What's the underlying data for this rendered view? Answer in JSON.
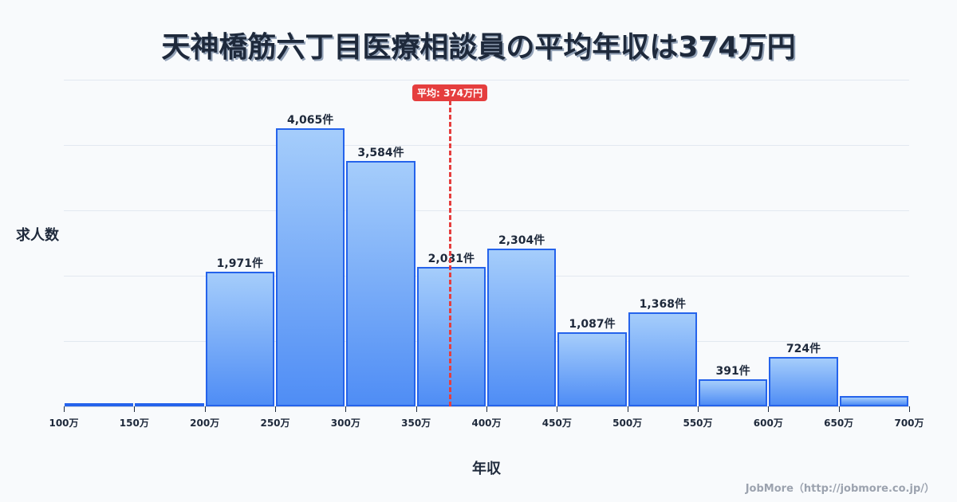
{
  "title": "天神橋筋六丁目医療相談員の平均年収は374万円",
  "y_axis_label": "求人数",
  "x_axis_label": "年収",
  "average_badge": "平均: 374万円",
  "credit": "JobMore（http://jobmore.co.jp/）",
  "colors": {
    "bar_border": "#2563eb",
    "bar_top": "#a5cdfb",
    "bar_bottom": "#4f8df5",
    "average_line": "#e53e3e",
    "text": "#1e293b",
    "grid": "#e2e8f0",
    "background": "#f8fafc"
  },
  "chart_data": {
    "type": "bar",
    "title": "天神橋筋六丁目医療相談員の平均年収は374万円",
    "xlabel": "年収",
    "ylabel": "求人数",
    "categories": [
      "100-150万",
      "150-200万",
      "200-250万",
      "250-300万",
      "300-350万",
      "350-400万",
      "400-450万",
      "450-500万",
      "500-550万",
      "550-600万",
      "600-650万",
      "650-700万"
    ],
    "values": [
      20,
      50,
      1971,
      4065,
      3584,
      2031,
      2304,
      1087,
      1368,
      391,
      724,
      150
    ],
    "labels": [
      "",
      "",
      "1,971件",
      "4,065件",
      "3,584件",
      "2,031件",
      "2,304件",
      "1,087件",
      "1,368件",
      "391件",
      "724件",
      ""
    ],
    "x_ticks": [
      "100万",
      "150万",
      "200万",
      "250万",
      "300万",
      "350万",
      "400万",
      "450万",
      "500万",
      "550万",
      "600万",
      "650万",
      "700万"
    ],
    "average": 374,
    "average_label": "平均: 374万円",
    "ylim": [
      0,
      4770
    ],
    "grid": true,
    "legend": null
  }
}
